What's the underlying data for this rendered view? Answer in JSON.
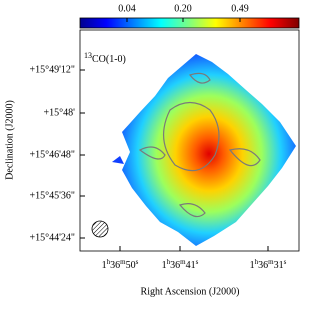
{
  "figure": {
    "label": {
      "sup": "13",
      "text": "CO(1-0)"
    },
    "colorbar_ticks": [
      "0.04",
      "0.20",
      "0.49"
    ],
    "x_axis": {
      "title": "Right Ascension (J2000)",
      "ticks": [
        [
          "1",
          "h",
          "36",
          "m",
          "50",
          "s"
        ],
        [
          "1",
          "h",
          "36",
          "m",
          "41",
          "s"
        ],
        [
          "1",
          "h",
          "36",
          "m",
          "31",
          "s"
        ]
      ]
    },
    "y_axis": {
      "title": "Declination (J2000)",
      "ticks": [
        "+15°49'12\"",
        "+15°48'",
        "+15°46'48\"",
        "+15°45'36\"",
        "+15°44'24\""
      ]
    }
  }
}
